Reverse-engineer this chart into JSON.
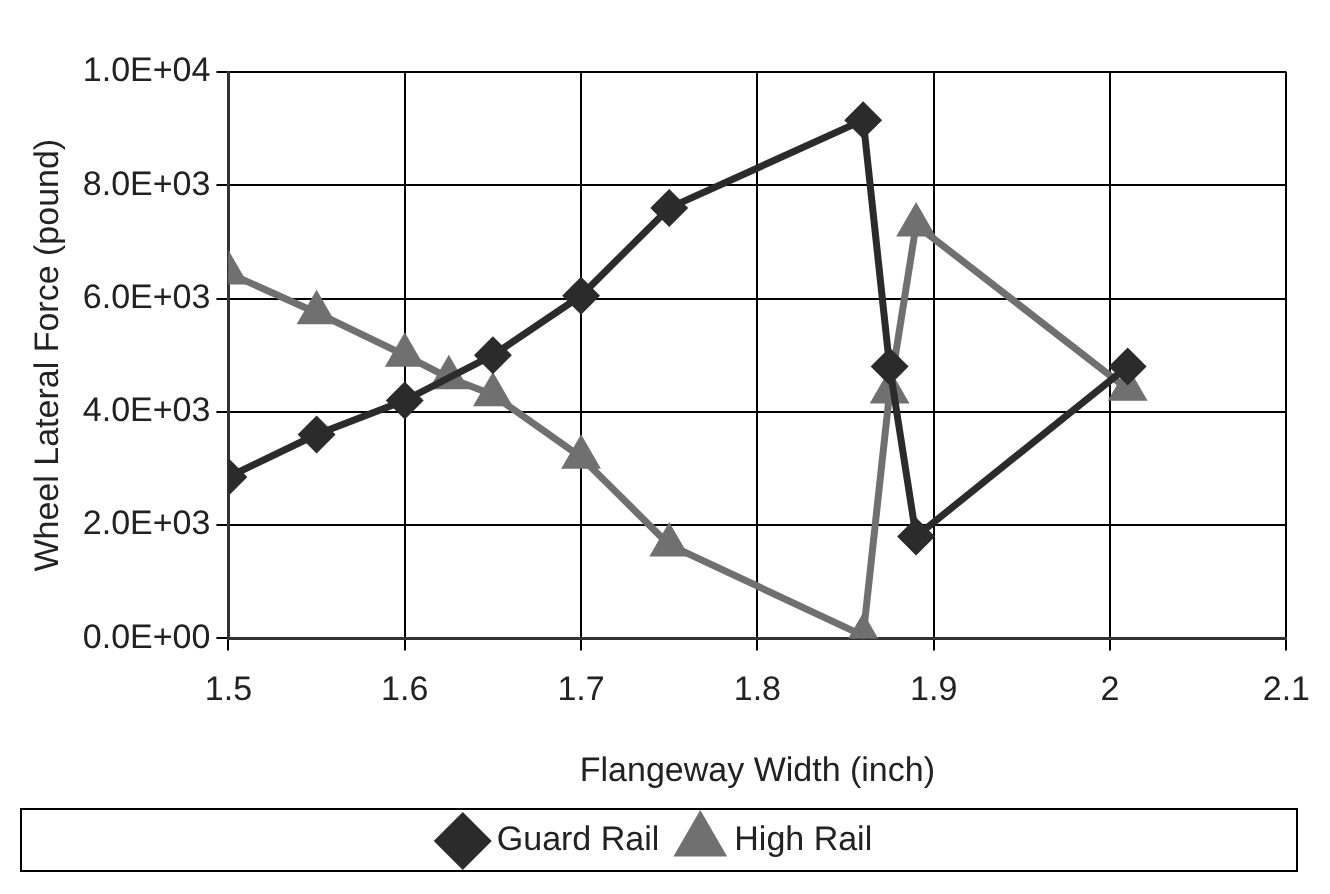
{
  "chart_data": {
    "type": "line",
    "xlabel": "Flangeway Width (inch)",
    "ylabel": "Wheel Lateral Force (pound)",
    "xlim": [
      1.5,
      2.1
    ],
    "xticks": [
      1.5,
      1.6,
      1.7,
      1.8,
      1.9,
      2,
      2.1
    ],
    "ylim": [
      0,
      10000
    ],
    "yticks": [
      {
        "value": 0,
        "label": "0.0E+00"
      },
      {
        "value": 2000,
        "label": "2.0E+03"
      },
      {
        "value": 4000,
        "label": "4.0E+03"
      },
      {
        "value": 6000,
        "label": "6.0E+03"
      },
      {
        "value": 8000,
        "label": "8.0E+03"
      },
      {
        "value": 10000,
        "label": "1.0E+04"
      }
    ],
    "grid": true,
    "legend": "bottom",
    "line_style": "solid",
    "series": [
      {
        "name": "Guard Rail",
        "color": "#2b2b2b",
        "marker": "diamond",
        "x": [
          1.5,
          1.55,
          1.6,
          1.65,
          1.7,
          1.75,
          1.86,
          1.875,
          1.89,
          2.01
        ],
        "values": [
          2850,
          3600,
          4200,
          5000,
          6050,
          7600,
          9150,
          4800,
          1800,
          4800
        ]
      },
      {
        "name": "High Rail",
        "color": "#707070",
        "marker": "triangle",
        "x": [
          1.5,
          1.55,
          1.6,
          1.625,
          1.65,
          1.7,
          1.75,
          1.86,
          1.875,
          1.89,
          2.01
        ],
        "values": [
          6450,
          5750,
          5000,
          4600,
          4300,
          3200,
          1650,
          50,
          4350,
          7300,
          4400
        ]
      }
    ]
  }
}
